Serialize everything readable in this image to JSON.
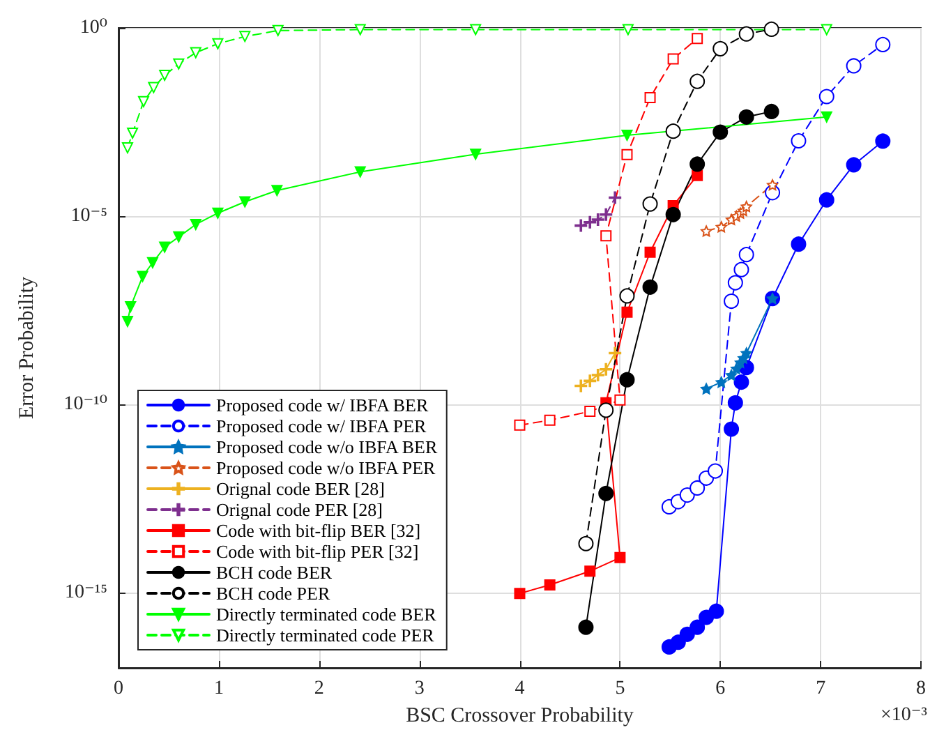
{
  "chart_data": {
    "type": "line",
    "xlabel": "BSC Crossover Probability",
    "ylabel": "Error Probability",
    "annotations": [
      "×10⁻³"
    ],
    "xlim": [
      0,
      8
    ],
    "xticks": [
      0,
      1,
      2,
      3,
      4,
      5,
      6,
      7,
      8
    ],
    "ylim": [
      1e-17,
      1
    ],
    "yticks": [
      {
        "value": 1e-15,
        "label": "10⁻¹⁵"
      },
      {
        "value": 1e-10,
        "label": "10⁻¹⁰"
      },
      {
        "value": 1e-05,
        "label": "10⁻⁵"
      },
      {
        "value": 1,
        "label": "10⁰"
      }
    ],
    "log": "y",
    "grid": true,
    "legend": "bottom left",
    "series": [
      {
        "name": "Proposed code w/ IBFA BER",
        "color": "#0000ff",
        "marker": "circle",
        "line_style": "solid",
        "x": [
          5.49,
          5.58,
          5.67,
          5.77,
          5.86,
          5.96,
          6.11,
          6.15,
          6.21,
          6.26,
          6.52,
          6.78,
          7.06,
          7.33,
          7.62
        ],
        "values": [
          3.6e-17,
          4.8e-17,
          7.8e-17,
          1.2e-16,
          2.2e-16,
          3.2e-16,
          2.2e-11,
          1.1e-10,
          3.9e-10,
          9.5e-10,
          6.5e-08,
          1.8e-06,
          2.7e-05,
          0.00023,
          0.00098
        ]
      },
      {
        "name": "Proposed code w/ IBFA PER",
        "color": "#0000ff",
        "marker": "circle",
        "line_style": "dashed",
        "x": [
          5.49,
          5.58,
          5.67,
          5.77,
          5.86,
          5.95,
          6.11,
          6.15,
          6.21,
          6.26,
          6.52,
          6.78,
          7.06,
          7.33,
          7.62
        ],
        "values": [
          1.9e-13,
          2.6e-13,
          3.9e-13,
          6e-13,
          1.1e-12,
          1.7e-12,
          5.5e-08,
          1.7e-07,
          3.8e-07,
          9.5e-07,
          4.2e-05,
          0.001,
          0.015,
          0.098,
          0.36
        ]
      },
      {
        "name": "Proposed code w/o IBFA BER",
        "color": "#0072bd",
        "marker": "star",
        "line_style": "solid",
        "x": [
          5.86,
          6.01,
          6.11,
          6.16,
          6.2,
          6.23,
          6.26,
          6.52
        ],
        "values": [
          2.6e-10,
          3.9e-10,
          6e-10,
          8.9e-10,
          1.3e-09,
          1.7e-09,
          2.3e-09,
          6.5e-08
        ]
      },
      {
        "name": "Proposed code w/o IBFA PER",
        "color": "#d95319",
        "marker": "star",
        "line_style": "dashed",
        "x": [
          5.86,
          6.01,
          6.11,
          6.16,
          6.2,
          6.23,
          6.26,
          6.52
        ],
        "values": [
          4e-06,
          5.2e-06,
          8.1e-06,
          1e-05,
          1.2e-05,
          1.4e-05,
          1.8e-05,
          6.8e-05
        ]
      },
      {
        "name": "Orignal code BER [28]",
        "color": "#edb120",
        "marker": "cross",
        "line_style": "solid",
        "x": [
          4.61,
          4.7,
          4.78,
          4.86,
          4.95
        ],
        "values": [
          3.1e-10,
          4.2e-10,
          6e-10,
          8.5e-10,
          2.3e-09
        ]
      },
      {
        "name": "Orignal code PER [28]",
        "color": "#7e2f8e",
        "marker": "cross",
        "line_style": "dashed",
        "x": [
          4.61,
          4.7,
          4.78,
          4.86,
          4.95
        ],
        "values": [
          5.6e-06,
          6.9e-06,
          8.1e-06,
          1.1e-05,
          3.1e-05
        ]
      },
      {
        "name": "Code with bit-flip BER [32]",
        "color": "#ff0000",
        "marker": "square",
        "line_style": "solid",
        "x": [
          4.0,
          4.3,
          4.7,
          5.0,
          4.86,
          5.07,
          5.3,
          5.53,
          5.77
        ],
        "values": [
          9.5e-16,
          1.6e-15,
          3.7e-15,
          8.5e-15,
          1.1e-10,
          2.8e-08,
          1.1e-06,
          1.9e-05,
          0.00012
        ]
      },
      {
        "name": "Code with bit-flip PER [32]",
        "color": "#ff0000",
        "marker": "square",
        "line_style": "dashed",
        "x": [
          4.0,
          4.3,
          4.7,
          5.0,
          4.86,
          5.07,
          5.3,
          5.53,
          5.77
        ],
        "values": [
          2.8e-11,
          3.8e-11,
          6.5e-11,
          1.3e-10,
          3e-06,
          0.00043,
          0.014,
          0.15,
          0.52
        ]
      },
      {
        "name": "BCH code BER",
        "color": "#000000",
        "marker": "circle",
        "line_style": "solid",
        "x": [
          4.66,
          4.86,
          5.07,
          5.3,
          5.53,
          5.77,
          6.0,
          6.26,
          6.51
        ],
        "values": [
          1.2e-16,
          4.3e-13,
          4.5e-10,
          1.3e-07,
          1.1e-05,
          0.00024,
          0.0017,
          0.0043,
          0.006
        ]
      },
      {
        "name": "BCH code PER",
        "color": "#000000",
        "marker": "circle",
        "line_style": "dashed",
        "x": [
          4.66,
          4.86,
          5.07,
          5.3,
          5.53,
          5.77,
          6.0,
          6.26,
          6.51
        ],
        "values": [
          2e-14,
          7e-11,
          7.6e-08,
          2.1e-05,
          0.0018,
          0.038,
          0.28,
          0.69,
          0.92
        ]
      },
      {
        "name": "Directly terminated code BER",
        "color": "#00ff00",
        "marker": "triangle",
        "line_style": "solid",
        "x": [
          0.09,
          0.12,
          0.24,
          0.34,
          0.46,
          0.6,
          0.77,
          0.99,
          1.26,
          1.58,
          2.41,
          3.56,
          5.07,
          7.06
        ],
        "values": [
          1.6e-08,
          3.9e-08,
          2.5e-07,
          5.8e-07,
          1.5e-06,
          2.8e-06,
          6e-06,
          1.2e-05,
          2.4e-05,
          4.8e-05,
          0.00015,
          0.00044,
          0.0014,
          0.0043
        ]
      },
      {
        "name": "Directly terminated code PER",
        "color": "#00ff00",
        "marker": "triangle",
        "line_style": "dashed",
        "x": [
          0.09,
          0.14,
          0.25,
          0.35,
          0.46,
          0.6,
          0.77,
          0.99,
          1.26,
          1.59,
          2.41,
          3.56,
          5.08,
          7.06
        ],
        "values": [
          0.00065,
          0.0016,
          0.011,
          0.026,
          0.055,
          0.11,
          0.22,
          0.38,
          0.59,
          0.85,
          0.9,
          0.9,
          0.9,
          0.9
        ]
      }
    ]
  }
}
